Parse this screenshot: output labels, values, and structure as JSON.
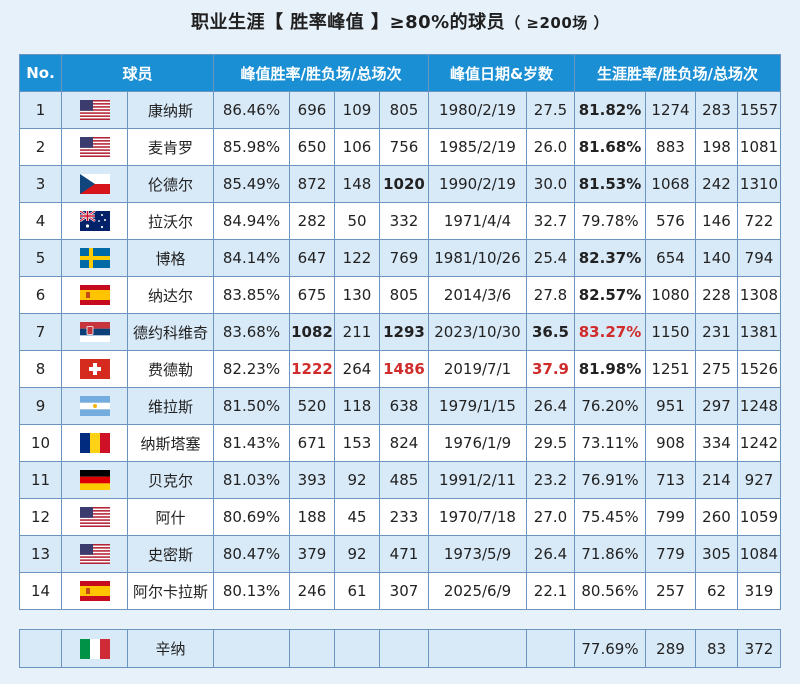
{
  "title": {
    "main": "职业生涯【 胜率峰值 】≥80%的球员",
    "sub": "（ ≥200场 ）"
  },
  "headers": [
    "No.",
    "球员",
    "峰值胜率/胜负场/总场次",
    "峰值日期&岁数",
    "生涯胜率/胜负场/总场次"
  ],
  "rows": [
    {
      "no": "1",
      "flag": "us-flag-icon",
      "name": "康纳斯",
      "peak_pct": "86.46%",
      "peak_w": "696",
      "peak_l": "109",
      "peak_total": "805",
      "date": "1980/2/19",
      "age": "27.5",
      "car_pct": "81.82%",
      "car_w": "1274",
      "car_l": "283",
      "car_total": "1557"
    },
    {
      "no": "2",
      "flag": "us-flag-icon",
      "name": "麦肯罗",
      "peak_pct": "85.98%",
      "peak_w": "650",
      "peak_l": "106",
      "peak_total": "756",
      "date": "1985/2/19",
      "age": "26.0",
      "car_pct": "81.68%",
      "car_w": "883",
      "car_l": "198",
      "car_total": "1081"
    },
    {
      "no": "3",
      "flag": "czech-flag-icon",
      "name": "伦德尔",
      "peak_pct": "85.49%",
      "peak_w": "872",
      "peak_l": "148",
      "peak_total": "1020",
      "date": "1990/2/19",
      "age": "30.0",
      "car_pct": "81.53%",
      "car_w": "1068",
      "car_l": "242",
      "car_total": "1310"
    },
    {
      "no": "4",
      "flag": "australia-flag-icon",
      "name": "拉沃尔",
      "peak_pct": "84.94%",
      "peak_w": "282",
      "peak_l": "50",
      "peak_total": "332",
      "date": "1971/4/4",
      "age": "32.7",
      "car_pct": "79.78%",
      "car_w": "576",
      "car_l": "146",
      "car_total": "722"
    },
    {
      "no": "5",
      "flag": "sweden-flag-icon",
      "name": "博格",
      "peak_pct": "84.14%",
      "peak_w": "647",
      "peak_l": "122",
      "peak_total": "769",
      "date": "1981/10/26",
      "age": "25.4",
      "car_pct": "82.37%",
      "car_w": "654",
      "car_l": "140",
      "car_total": "794"
    },
    {
      "no": "6",
      "flag": "spain-flag-icon",
      "name": "纳达尔",
      "peak_pct": "83.85%",
      "peak_w": "675",
      "peak_l": "130",
      "peak_total": "805",
      "date": "2014/3/6",
      "age": "27.8",
      "car_pct": "82.57%",
      "car_w": "1080",
      "car_l": "228",
      "car_total": "1308"
    },
    {
      "no": "7",
      "flag": "serbia-flag-icon",
      "name": "德约科维奇",
      "peak_pct": "83.68%",
      "peak_w": "1082",
      "peak_l": "211",
      "peak_total": "1293",
      "date": "2023/10/30",
      "age": "36.5",
      "car_pct": "83.27%",
      "car_w": "1150",
      "car_l": "231",
      "car_total": "1381"
    },
    {
      "no": "8",
      "flag": "switzerland-flag-icon",
      "name": "费德勒",
      "peak_pct": "82.23%",
      "peak_w": "1222",
      "peak_l": "264",
      "peak_total": "1486",
      "date": "2019/7/1",
      "age": "37.9",
      "car_pct": "81.98%",
      "car_w": "1251",
      "car_l": "275",
      "car_total": "1526"
    },
    {
      "no": "9",
      "flag": "argentina-flag-icon",
      "name": "维拉斯",
      "peak_pct": "81.50%",
      "peak_w": "520",
      "peak_l": "118",
      "peak_total": "638",
      "date": "1979/1/15",
      "age": "26.4",
      "car_pct": "76.20%",
      "car_w": "951",
      "car_l": "297",
      "car_total": "1248"
    },
    {
      "no": "10",
      "flag": "romania-flag-icon",
      "name": "纳斯塔塞",
      "peak_pct": "81.43%",
      "peak_w": "671",
      "peak_l": "153",
      "peak_total": "824",
      "date": "1976/1/9",
      "age": "29.5",
      "car_pct": "73.11%",
      "car_w": "908",
      "car_l": "334",
      "car_total": "1242"
    },
    {
      "no": "11",
      "flag": "germany-flag-icon",
      "name": "贝克尔",
      "peak_pct": "81.03%",
      "peak_w": "393",
      "peak_l": "92",
      "peak_total": "485",
      "date": "1991/2/11",
      "age": "23.2",
      "car_pct": "76.91%",
      "car_w": "713",
      "car_l": "214",
      "car_total": "927"
    },
    {
      "no": "12",
      "flag": "us-flag-icon",
      "name": "阿什",
      "peak_pct": "80.69%",
      "peak_w": "188",
      "peak_l": "45",
      "peak_total": "233",
      "date": "1970/7/18",
      "age": "27.0",
      "car_pct": "75.45%",
      "car_w": "799",
      "car_l": "260",
      "car_total": "1059"
    },
    {
      "no": "13",
      "flag": "us-flag-icon",
      "name": "史密斯",
      "peak_pct": "80.47%",
      "peak_w": "379",
      "peak_l": "92",
      "peak_total": "471",
      "date": "1973/5/9",
      "age": "26.4",
      "car_pct": "71.86%",
      "car_w": "779",
      "car_l": "305",
      "car_total": "1084"
    },
    {
      "no": "14",
      "flag": "spain-flag-icon",
      "name": "阿尔卡拉斯",
      "peak_pct": "80.13%",
      "peak_w": "246",
      "peak_l": "61",
      "peak_total": "307",
      "date": "2025/6/9",
      "age": "22.1",
      "car_pct": "80.56%",
      "car_w": "257",
      "car_l": "62",
      "car_total": "319"
    }
  ],
  "extra": {
    "flag": "italy-flag-icon",
    "name": "辛纳",
    "car_pct": "77.69%",
    "car_w": "289",
    "car_l": "83",
    "car_total": "372"
  },
  "colors": {
    "header_bg": "#1b8fd3",
    "odd_row": "#d8e9f7",
    "even_row": "#ffffff",
    "highlight": "#d02c2c",
    "page_bg": "#e6f1fa"
  }
}
